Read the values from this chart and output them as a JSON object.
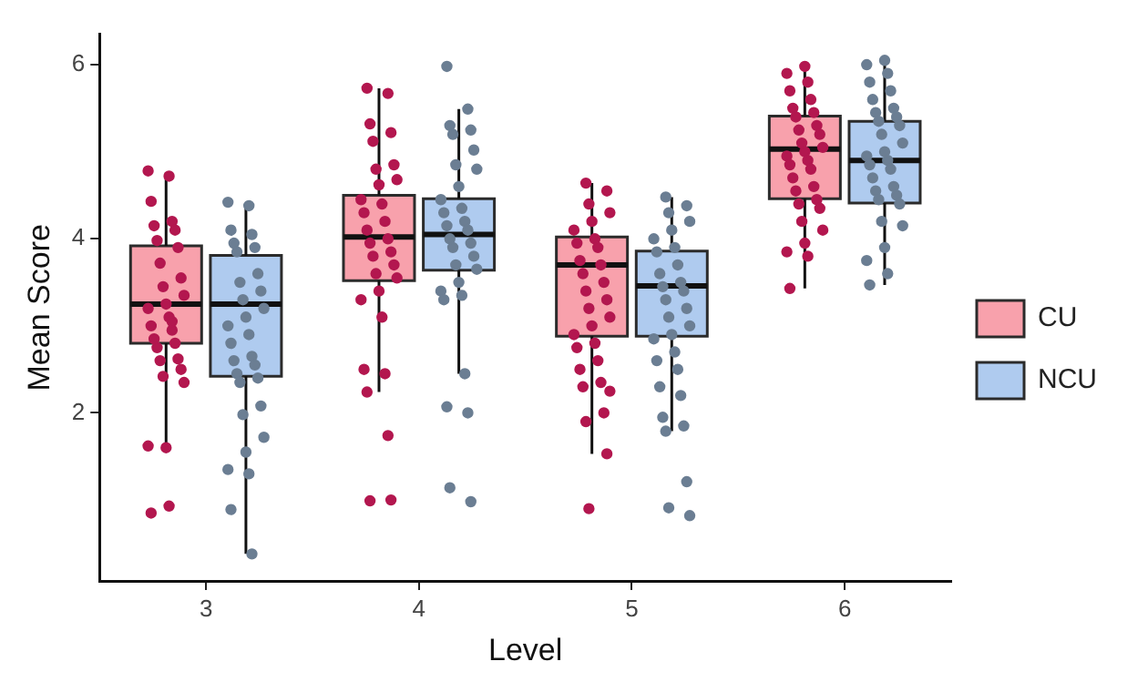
{
  "chart_data": {
    "type": "box",
    "xlabel": "Level",
    "ylabel": "Mean Score",
    "categories": [
      "3",
      "4",
      "5",
      "6"
    ],
    "ylim": [
      0.07,
      6.35
    ],
    "yticks": [
      2,
      4,
      6
    ],
    "grid": false,
    "legend": "right",
    "series": [
      {
        "name": "CU",
        "color": "#f8a1ac",
        "boxes": [
          {
            "low": 1.61,
            "q1": 2.8,
            "median": 3.25,
            "q3": 3.92,
            "high": 4.76
          },
          {
            "low": 2.24,
            "q1": 3.52,
            "median": 4.02,
            "q3": 4.5,
            "high": 5.73
          },
          {
            "low": 1.53,
            "q1": 2.88,
            "median": 3.7,
            "q3": 4.02,
            "high": 4.64
          },
          {
            "low": 3.43,
            "q1": 4.46,
            "median": 5.03,
            "q3": 5.41,
            "high": 5.98
          }
        ]
      },
      {
        "name": "NCU",
        "color": "#afcbef",
        "boxes": [
          {
            "low": 0.38,
            "q1": 2.42,
            "median": 3.25,
            "q3": 3.81,
            "high": 4.41
          },
          {
            "low": 2.45,
            "q1": 3.64,
            "median": 4.05,
            "q3": 4.46,
            "high": 5.49
          },
          {
            "low": 1.79,
            "q1": 2.88,
            "median": 3.46,
            "q3": 3.86,
            "high": 4.48
          },
          {
            "low": 3.47,
            "q1": 4.41,
            "median": 4.9,
            "q3": 5.35,
            "high": 6.05
          }
        ]
      },
      {
        "type": "scatter",
        "color": "#b3174f",
        "x": [
          "3",
          "3",
          "3",
          "3",
          "3",
          "3",
          "3",
          "3",
          "3",
          "3",
          "3",
          "3",
          "3",
          "3",
          "3",
          "3",
          "3",
          "3",
          "3",
          "3",
          "3",
          "3",
          "3",
          "3",
          "3",
          "3",
          "3",
          "3",
          "3",
          "3",
          "4",
          "4",
          "4",
          "4",
          "4",
          "4",
          "4",
          "4",
          "4",
          "4",
          "4",
          "4",
          "4",
          "4",
          "4",
          "4",
          "4",
          "4",
          "4",
          "4",
          "4",
          "4",
          "4",
          "4",
          "4",
          "4",
          "4",
          "4",
          "4",
          "4",
          "5",
          "5",
          "5",
          "5",
          "5",
          "5",
          "5",
          "5",
          "5",
          "5",
          "5",
          "5",
          "5",
          "5",
          "5",
          "5",
          "5",
          "5",
          "5",
          "5",
          "5",
          "5",
          "5",
          "5",
          "5",
          "5",
          "5",
          "5",
          "5",
          "5",
          "6",
          "6",
          "6",
          "6",
          "6",
          "6",
          "6",
          "6",
          "6",
          "6",
          "6",
          "6",
          "6",
          "6",
          "6",
          "6",
          "6",
          "6",
          "6",
          "6",
          "6",
          "6",
          "6",
          "6",
          "6",
          "6",
          "6",
          "6",
          "6",
          "6"
        ],
        "values": [
          4.78,
          4.72,
          4.43,
          4.2,
          4.15,
          4.1,
          3.98,
          3.9,
          3.72,
          3.55,
          3.45,
          3.35,
          3.25,
          3.2,
          3.1,
          3.0,
          2.95,
          2.85,
          2.8,
          2.75,
          2.62,
          2.6,
          2.5,
          2.42,
          2.35,
          1.6,
          1.62,
          0.93,
          0.85,
          3.05,
          5.73,
          5.67,
          5.32,
          5.22,
          5.12,
          4.85,
          4.8,
          4.68,
          4.62,
          4.45,
          4.4,
          4.3,
          4.2,
          4.1,
          4.0,
          3.95,
          3.85,
          3.8,
          3.7,
          3.6,
          3.55,
          3.4,
          3.3,
          3.1,
          2.5,
          2.45,
          2.24,
          1.74,
          0.99,
          1.0,
          4.64,
          4.55,
          4.4,
          4.3,
          4.2,
          4.1,
          4.0,
          3.95,
          3.9,
          3.75,
          3.7,
          3.6,
          3.5,
          3.4,
          3.3,
          3.2,
          3.1,
          3.0,
          2.9,
          2.8,
          2.75,
          2.6,
          2.5,
          2.35,
          2.3,
          2.0,
          1.9,
          1.53,
          0.9,
          2.25,
          5.98,
          5.9,
          5.8,
          5.7,
          5.6,
          5.5,
          5.45,
          5.4,
          5.3,
          5.25,
          5.2,
          5.1,
          5.05,
          5.0,
          4.95,
          4.9,
          4.85,
          4.8,
          4.7,
          4.6,
          4.55,
          4.45,
          4.4,
          4.35,
          4.2,
          4.1,
          3.95,
          3.85,
          3.8,
          3.43
        ]
      },
      {
        "type": "scatter",
        "color": "#6b7e93",
        "x": [
          "3",
          "3",
          "3",
          "3",
          "3",
          "3",
          "3",
          "3",
          "3",
          "3",
          "3",
          "3",
          "3",
          "3",
          "3",
          "3",
          "3",
          "3",
          "3",
          "3",
          "3",
          "3",
          "3",
          "3",
          "3",
          "3",
          "3",
          "3",
          "3",
          "3",
          "4",
          "4",
          "4",
          "4",
          "4",
          "4",
          "4",
          "4",
          "4",
          "4",
          "4",
          "4",
          "4",
          "4",
          "4",
          "4",
          "4",
          "4",
          "4",
          "4",
          "4",
          "4",
          "4",
          "4",
          "4",
          "4",
          "4",
          "4",
          "4",
          "4",
          "5",
          "5",
          "5",
          "5",
          "5",
          "5",
          "5",
          "5",
          "5",
          "5",
          "5",
          "5",
          "5",
          "5",
          "5",
          "5",
          "5",
          "5",
          "5",
          "5",
          "5",
          "5",
          "5",
          "5",
          "5",
          "5",
          "5",
          "5",
          "5",
          "5",
          "6",
          "6",
          "6",
          "6",
          "6",
          "6",
          "6",
          "6",
          "6",
          "6",
          "6",
          "6",
          "6",
          "6",
          "6",
          "6",
          "6",
          "6",
          "6",
          "6",
          "6",
          "6",
          "6",
          "6",
          "6",
          "6",
          "6",
          "6",
          "6",
          "6"
        ],
        "values": [
          4.42,
          4.38,
          4.1,
          4.05,
          3.95,
          3.9,
          3.85,
          3.6,
          3.5,
          3.4,
          3.3,
          3.2,
          3.1,
          3.0,
          2.9,
          2.8,
          2.65,
          2.6,
          2.55,
          2.45,
          2.4,
          2.35,
          2.08,
          1.98,
          1.72,
          1.55,
          1.35,
          1.3,
          0.89,
          0.38,
          5.98,
          5.49,
          5.3,
          5.25,
          5.2,
          5.02,
          4.85,
          4.8,
          4.6,
          4.45,
          4.35,
          4.3,
          4.2,
          4.15,
          4.1,
          4.0,
          3.95,
          3.9,
          3.8,
          3.7,
          3.65,
          3.5,
          3.4,
          3.35,
          3.3,
          2.45,
          2.07,
          2.0,
          1.14,
          0.98,
          4.48,
          4.38,
          4.3,
          4.2,
          4.1,
          4.0,
          3.9,
          3.85,
          3.7,
          3.6,
          3.5,
          3.45,
          3.4,
          3.3,
          3.2,
          3.1,
          3.0,
          2.9,
          2.85,
          2.7,
          2.6,
          2.5,
          2.3,
          2.2,
          1.95,
          1.85,
          1.79,
          1.21,
          0.91,
          0.82,
          6.05,
          6.0,
          5.9,
          5.8,
          5.7,
          5.6,
          5.5,
          5.45,
          5.4,
          5.35,
          5.3,
          5.2,
          5.1,
          5.0,
          4.95,
          4.9,
          4.85,
          4.8,
          4.7,
          4.6,
          4.55,
          4.5,
          4.45,
          4.4,
          4.2,
          4.15,
          3.9,
          3.75,
          3.6,
          3.47
        ]
      }
    ]
  }
}
